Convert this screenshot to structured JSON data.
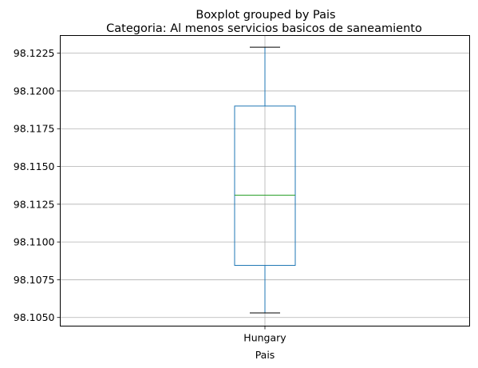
{
  "chart_data": {
    "type": "boxplot",
    "suptitle": "Boxplot grouped by Pais",
    "title": "Categoria: Al menos servicios basicos de saneamiento",
    "xlabel": "Pais",
    "ylabel": "",
    "categories": [
      "Hungary"
    ],
    "boxes": [
      {
        "category": "Hungary",
        "whisker_low": 98.1053,
        "q1": 98.10845,
        "median": 98.1131,
        "q3": 98.119,
        "whisker_high": 98.1229
      }
    ],
    "y_ticks": [
      98.105,
      98.1075,
      98.11,
      98.1125,
      98.115,
      98.1175,
      98.12,
      98.1225
    ],
    "y_tick_labels": [
      "98.1050",
      "98.1075",
      "98.1100",
      "98.1125",
      "98.1150",
      "98.1175",
      "98.1200",
      "98.1225"
    ],
    "ylim": [
      98.10443,
      98.12367
    ],
    "grid": true,
    "colors": {
      "box": "#1f77b4",
      "median": "#2ca02c",
      "whisker": "#1f77b4",
      "cap": "#000000",
      "grid": "#b0b0b0"
    }
  }
}
